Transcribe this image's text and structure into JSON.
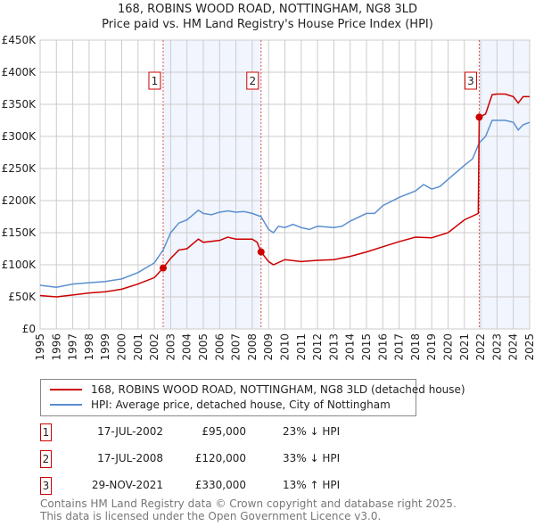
{
  "chart_data": {
    "type": "line",
    "title": "168, ROBINS WOOD ROAD, NOTTINGHAM, NG8 3LD",
    "subtitle": "Price paid vs. HM Land Registry's House Price Index (HPI)",
    "xlim": [
      1995,
      2025
    ],
    "ylim": [
      0,
      450000
    ],
    "yticks": [
      0,
      50000,
      100000,
      150000,
      200000,
      250000,
      300000,
      350000,
      400000,
      450000
    ],
    "ytick_labels": [
      "£0",
      "£50K",
      "£100K",
      "£150K",
      "£200K",
      "£250K",
      "£300K",
      "£350K",
      "£400K",
      "£450K"
    ],
    "xticks": [
      1995,
      1996,
      1997,
      1998,
      1999,
      2000,
      2001,
      2002,
      2003,
      2004,
      2005,
      2006,
      2007,
      2008,
      2009,
      2010,
      2011,
      2012,
      2013,
      2014,
      2015,
      2016,
      2017,
      2018,
      2019,
      2020,
      2021,
      2022,
      2023,
      2024,
      2025
    ],
    "grid": true,
    "series": [
      {
        "name": "168, ROBINS WOOD ROAD, NOTTINGHAM, NG8 3LD (detached house)",
        "color": "#cc0000",
        "x": [
          1995,
          1996,
          1997,
          1998,
          1999,
          2000,
          2001,
          2002,
          2002.54,
          2003,
          2003.5,
          2004,
          2004.7,
          2005,
          2006,
          2006.5,
          2007,
          2008,
          2008.3,
          2008.54,
          2009,
          2009.3,
          2010,
          2011,
          2012,
          2013,
          2014,
          2015,
          2016,
          2017,
          2018,
          2019,
          2020,
          2021,
          2021.85,
          2021.91,
          2022.3,
          2022.7,
          2023,
          2023.5,
          2024,
          2024.3,
          2024.6,
          2025
        ],
        "y": [
          52000,
          50000,
          53000,
          56000,
          58000,
          62000,
          70000,
          80000,
          95000,
          110000,
          123000,
          125000,
          140000,
          135000,
          138000,
          143000,
          140000,
          140000,
          135000,
          120000,
          105000,
          100000,
          108000,
          105000,
          107000,
          108000,
          113000,
          120000,
          128000,
          136000,
          143000,
          142000,
          150000,
          170000,
          180000,
          330000,
          335000,
          365000,
          366000,
          366000,
          362000,
          352000,
          362000,
          362000
        ]
      },
      {
        "name": "HPI: Average price, detached house, City of Nottingham",
        "color": "#5b8fd0",
        "x": [
          1995,
          1996,
          1997,
          1998,
          1999,
          2000,
          2001,
          2002,
          2002.54,
          2003,
          2003.5,
          2004,
          2004.7,
          2005,
          2005.5,
          2006,
          2006.5,
          2007,
          2007.5,
          2008,
          2008.54,
          2009,
          2009.3,
          2009.6,
          2010,
          2010.5,
          2011,
          2011.5,
          2012,
          2013,
          2013.5,
          2014,
          2015,
          2015.5,
          2016,
          2017,
          2018,
          2018.5,
          2019,
          2019.5,
          2020,
          2021,
          2021.5,
          2021.91,
          2022.3,
          2022.7,
          2023,
          2023.5,
          2024,
          2024.3,
          2024.6,
          2025
        ],
        "y": [
          68000,
          65000,
          70000,
          72000,
          74000,
          78000,
          88000,
          103000,
          123000,
          150000,
          165000,
          170000,
          185000,
          180000,
          178000,
          182000,
          184000,
          182000,
          183000,
          180000,
          175000,
          155000,
          150000,
          160000,
          158000,
          163000,
          158000,
          155000,
          160000,
          158000,
          160000,
          168000,
          180000,
          180000,
          192000,
          205000,
          215000,
          225000,
          218000,
          222000,
          233000,
          255000,
          265000,
          290000,
          300000,
          325000,
          325000,
          325000,
          322000,
          310000,
          318000,
          322000
        ]
      }
    ],
    "sales": [
      {
        "num": "1",
        "x": 2002.54,
        "y": 95000,
        "date": "17-JUL-2002",
        "price": "£95,000",
        "hpi": "23% ↓ HPI"
      },
      {
        "num": "2",
        "x": 2008.54,
        "y": 120000,
        "date": "17-JUL-2008",
        "price": "£120,000",
        "hpi": "33% ↓ HPI"
      },
      {
        "num": "3",
        "x": 2021.91,
        "y": 330000,
        "date": "29-NOV-2021",
        "price": "£330,000",
        "hpi": "13% ↑ HPI"
      }
    ],
    "shaded_ranges": [
      [
        2002.54,
        2008.54
      ],
      [
        2021.91,
        2025
      ]
    ]
  },
  "footer": [
    "Contains HM Land Registry data © Crown copyright and database right 2025.",
    "This data is licensed under the Open Government Licence v3.0."
  ]
}
